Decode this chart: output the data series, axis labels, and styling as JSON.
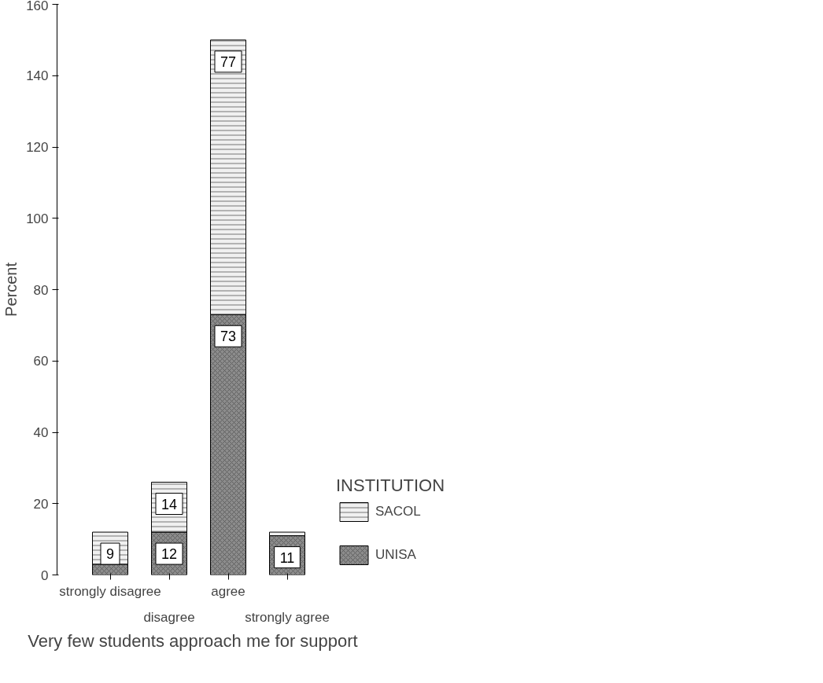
{
  "chart_data": {
    "type": "bar",
    "stacked": true,
    "xlabel": "Very few students approach me for support",
    "ylabel": "Percent",
    "legend_title": "INSTITUTION",
    "legend": "right",
    "grid": false,
    "categories": [
      "strongly disagree",
      "disagree",
      "agree",
      "strongly agree"
    ],
    "ylim": [
      0,
      160
    ],
    "yticks": [
      0,
      20,
      40,
      60,
      80,
      100,
      120,
      140,
      160
    ],
    "series": [
      {
        "name": "UNISA",
        "color": "#8c8c8c",
        "values": [
          3,
          12,
          73,
          11
        ],
        "value_labels": [
          null,
          "12",
          "73",
          "11"
        ]
      },
      {
        "name": "SACOL",
        "color": "#f0f0f0",
        "values": [
          9,
          14,
          77,
          1
        ],
        "value_labels": [
          "9",
          "14",
          "77",
          null
        ]
      }
    ]
  }
}
